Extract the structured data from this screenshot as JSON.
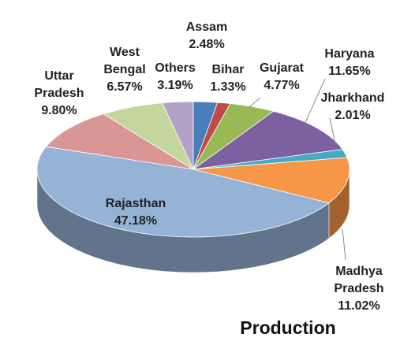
{
  "chart_data": {
    "type": "pie",
    "title": "Production",
    "categories": [
      "Assam",
      "Bihar",
      "Gujarat",
      "Haryana",
      "Jharkhand",
      "Madhya Pradesh",
      "Rajasthan",
      "Uttar Pradesh",
      "West Bengal",
      "Others"
    ],
    "values": [
      2.48,
      1.33,
      4.77,
      11.65,
      2.01,
      11.02,
      47.18,
      9.8,
      6.57,
      3.19
    ],
    "value_labels": [
      "2.48%",
      "1.33%",
      "4.77%",
      "11.65%",
      "2.01%",
      "11.02%",
      "47.18%",
      "9.80%",
      "6.57%",
      "3.19%"
    ],
    "colors": [
      "#4a7ebb",
      "#be4b48",
      "#98b954",
      "#7d60a0",
      "#46aac5",
      "#f79646",
      "#95b3d7",
      "#d99694",
      "#c3d69b",
      "#b3a2c7"
    ]
  }
}
